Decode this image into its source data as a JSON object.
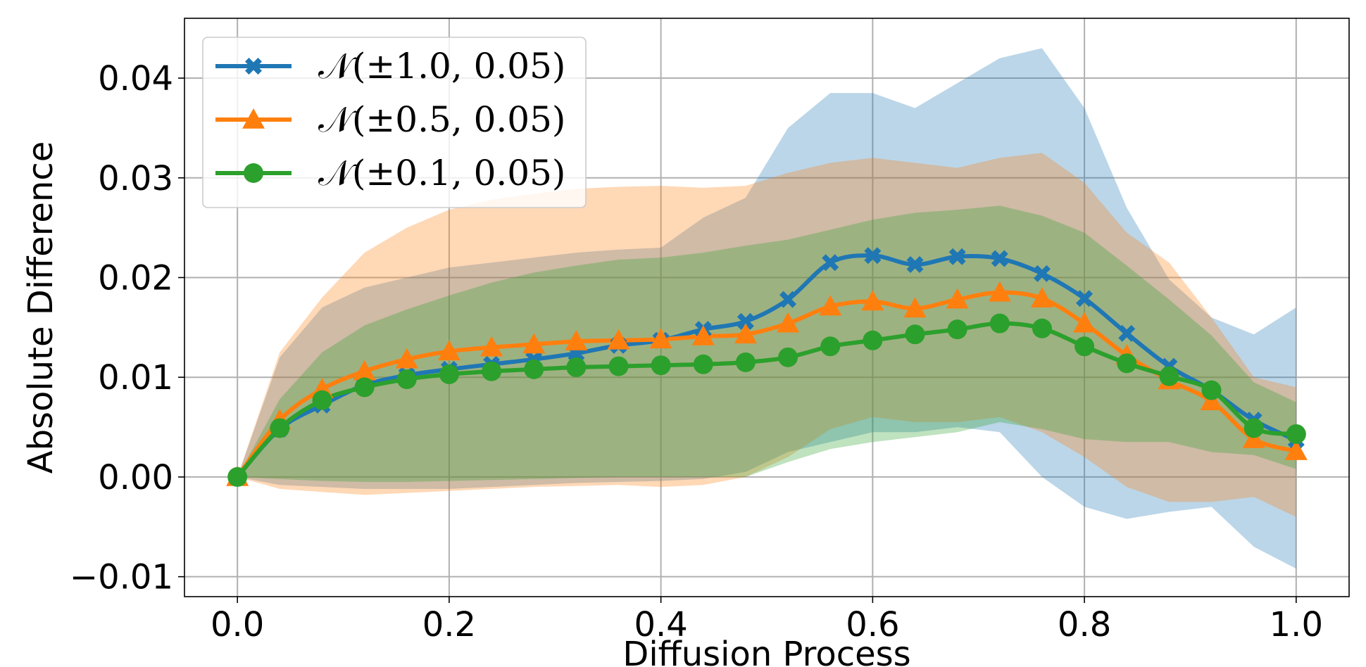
{
  "chart_data": {
    "type": "line",
    "xlabel": "Diffusion Process",
    "ylabel": "Absolute Difference",
    "xlim": [
      -0.05,
      1.05
    ],
    "ylim": [
      -0.012,
      0.046
    ],
    "x_ticks": [
      0.0,
      0.2,
      0.4,
      0.6,
      0.8,
      1.0
    ],
    "x_tick_labels": [
      "0.0",
      "0.2",
      "0.4",
      "0.6",
      "0.8",
      "1.0"
    ],
    "y_ticks": [
      -0.01,
      0.0,
      0.01,
      0.02,
      0.03,
      0.04
    ],
    "y_tick_labels": [
      "−0.01",
      "0.00",
      "0.01",
      "0.02",
      "0.03",
      "0.04"
    ],
    "grid": true,
    "legend_position": "top-left",
    "x": [
      0.0,
      0.04,
      0.08,
      0.12,
      0.16,
      0.2,
      0.24,
      0.28,
      0.32,
      0.36,
      0.4,
      0.44,
      0.48,
      0.52,
      0.56,
      0.6,
      0.64,
      0.68,
      0.72,
      0.76,
      0.8,
      0.84,
      0.88,
      0.92,
      0.96,
      1.0
    ],
    "series": [
      {
        "name": "𝒩(±1.0, 0.05)",
        "color": "#1f77b4",
        "marker": "x",
        "values": [
          0.0,
          0.0048,
          0.0072,
          0.0092,
          0.0102,
          0.0108,
          0.0113,
          0.0118,
          0.0124,
          0.0132,
          0.0137,
          0.0148,
          0.0156,
          0.0178,
          0.0215,
          0.0222,
          0.0213,
          0.0221,
          0.0219,
          0.0204,
          0.0179,
          0.0144,
          0.0111,
          0.0087,
          0.0057,
          0.0037
        ],
        "band_lower": [
          0.0,
          -0.0008,
          -0.001,
          -0.0012,
          -0.0012,
          -0.0012,
          -0.001,
          -0.0008,
          -0.0006,
          -0.0005,
          -0.0004,
          -0.0002,
          0.0005,
          0.0025,
          0.0035,
          0.0045,
          0.0045,
          0.005,
          0.0045,
          0.0,
          -0.003,
          -0.0042,
          -0.0035,
          -0.003,
          -0.007,
          -0.0092
        ],
        "band_upper": [
          0.0,
          0.012,
          0.017,
          0.019,
          0.02,
          0.021,
          0.0215,
          0.022,
          0.0225,
          0.0228,
          0.023,
          0.026,
          0.028,
          0.035,
          0.0385,
          0.0385,
          0.037,
          0.0395,
          0.042,
          0.043,
          0.037,
          0.027,
          0.0198,
          0.016,
          0.0143,
          0.017
        ]
      },
      {
        "name": "𝒩(±0.5, 0.05)",
        "color": "#ff7f0e",
        "marker": "^",
        "values": [
          0.0,
          0.0057,
          0.0088,
          0.0106,
          0.0118,
          0.0126,
          0.013,
          0.0133,
          0.0136,
          0.0137,
          0.0138,
          0.0141,
          0.0143,
          0.0154,
          0.0171,
          0.0176,
          0.0169,
          0.0178,
          0.0185,
          0.0179,
          0.0154,
          0.0122,
          0.0097,
          0.0076,
          0.0038,
          0.0026
        ],
        "band_lower": [
          0.0,
          -0.0012,
          -0.0015,
          -0.0018,
          -0.0016,
          -0.0014,
          -0.0012,
          -0.001,
          -0.0009,
          -0.0008,
          -0.001,
          -0.0008,
          0.0,
          0.002,
          0.0048,
          0.006,
          0.0055,
          0.0055,
          0.006,
          0.0045,
          0.002,
          -0.001,
          -0.0025,
          -0.0025,
          -0.002,
          -0.004
        ],
        "band_upper": [
          0.0,
          0.0125,
          0.018,
          0.0225,
          0.025,
          0.0268,
          0.0278,
          0.0284,
          0.0289,
          0.0291,
          0.0292,
          0.029,
          0.0292,
          0.0305,
          0.0315,
          0.032,
          0.0315,
          0.031,
          0.032,
          0.0325,
          0.0295,
          0.0245,
          0.0215,
          0.016,
          0.01,
          0.009
        ]
      },
      {
        "name": "𝒩(±0.1, 0.05)",
        "color": "#2ca02c",
        "marker": "o",
        "values": [
          0.0,
          0.0049,
          0.0077,
          0.009,
          0.0098,
          0.0103,
          0.0106,
          0.0108,
          0.011,
          0.0111,
          0.0112,
          0.0113,
          0.0115,
          0.012,
          0.0131,
          0.0137,
          0.0143,
          0.0148,
          0.0154,
          0.0149,
          0.0131,
          0.0114,
          0.0101,
          0.0087,
          0.0049,
          0.0043
        ],
        "band_lower": [
          0.0,
          -0.0002,
          -0.0004,
          -0.0005,
          -0.0005,
          -0.0004,
          -0.0003,
          -0.0002,
          -0.0001,
          0.0,
          0.0,
          0.0,
          0.0,
          0.0015,
          0.0028,
          0.0035,
          0.004,
          0.0045,
          0.0055,
          0.0048,
          0.0038,
          0.0035,
          0.0035,
          0.0025,
          0.0022,
          0.0008
        ],
        "band_upper": [
          0.0,
          0.0078,
          0.0125,
          0.0152,
          0.0168,
          0.0182,
          0.0195,
          0.0205,
          0.0212,
          0.0218,
          0.022,
          0.0225,
          0.0232,
          0.0238,
          0.0248,
          0.0258,
          0.0265,
          0.0268,
          0.0272,
          0.0262,
          0.0245,
          0.0212,
          0.0178,
          0.0142,
          0.0095,
          0.0075
        ]
      }
    ]
  }
}
